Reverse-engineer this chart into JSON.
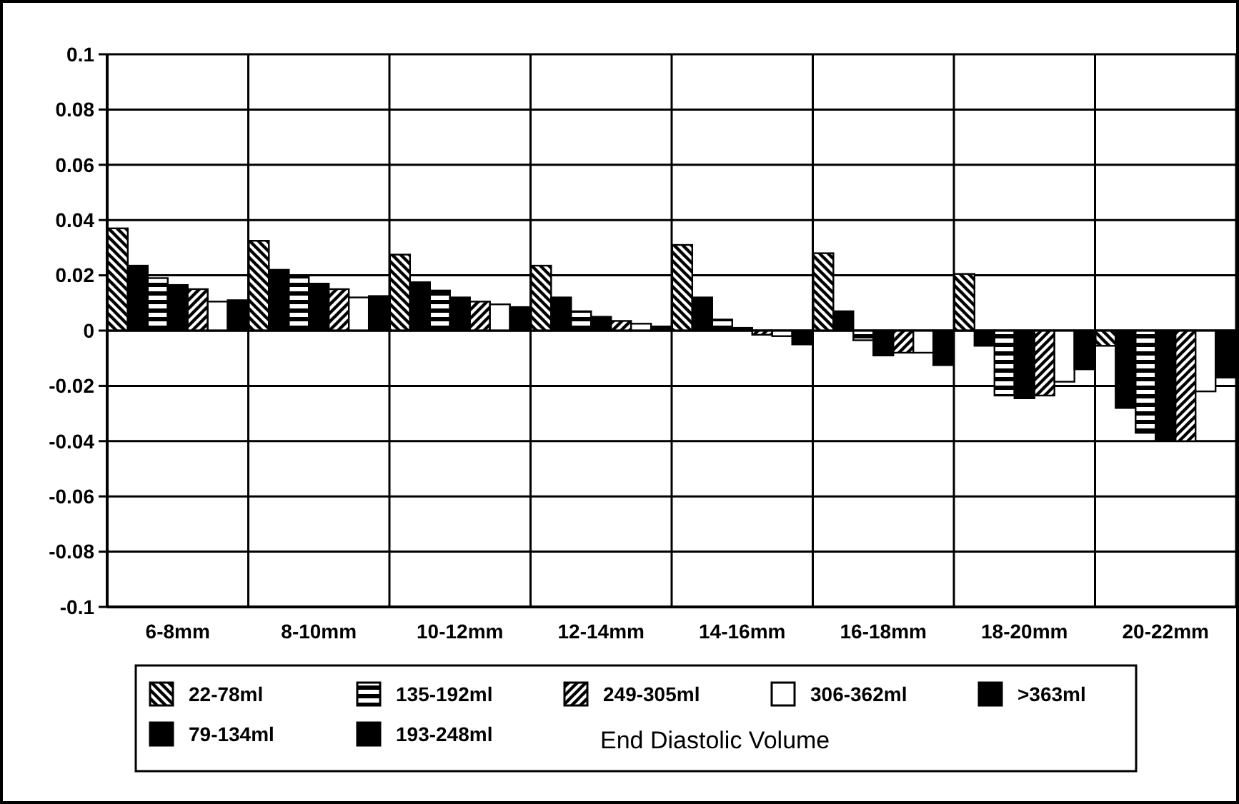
{
  "chart_data": {
    "type": "bar",
    "categories": [
      "6-8mm",
      "8-10mm",
      "10-12mm",
      "12-14mm",
      "14-16mm",
      "16-18mm",
      "18-20mm",
      "20-22mm"
    ],
    "series": [
      {
        "name": "22-78ml",
        "color": "#000000",
        "values": [
          0.037,
          0.0325,
          0.0275,
          0.0235,
          0.031,
          0.028,
          0.0205,
          -0.0055
        ]
      },
      {
        "name": "79-134ml",
        "color": "#000000",
        "values": [
          0.0235,
          0.022,
          0.0175,
          0.012,
          0.012,
          0.007,
          -0.0055,
          -0.028
        ]
      },
      {
        "name": "135-192ml",
        "color": "#000000",
        "values": [
          0.019,
          0.0195,
          0.0145,
          0.007,
          0.004,
          -0.0035,
          -0.0235,
          -0.037
        ]
      },
      {
        "name": "193-248ml",
        "color": "#000000",
        "values": [
          0.0165,
          0.017,
          0.012,
          0.005,
          0.001,
          -0.009,
          -0.0245,
          -0.04
        ]
      },
      {
        "name": "249-305ml",
        "color": "#000000",
        "values": [
          0.015,
          0.015,
          0.0105,
          0.0035,
          -0.0015,
          -0.008,
          -0.0235,
          -0.04
        ]
      },
      {
        "name": "306-362ml",
        "color": "#ffffff",
        "values": [
          0.0105,
          0.012,
          0.0095,
          0.0025,
          -0.002,
          -0.008,
          -0.0185,
          -0.022
        ]
      },
      {
        "name": ">363ml",
        "color": "#000000",
        "values": [
          0.011,
          0.0125,
          0.0085,
          0.0015,
          -0.005,
          -0.0125,
          -0.014,
          -0.017
        ]
      }
    ],
    "ylim": [
      -0.1,
      0.1
    ],
    "yticks": [
      -0.1,
      -0.08,
      -0.06,
      -0.04,
      -0.02,
      0,
      0.02,
      0.04,
      0.06,
      0.08,
      0.1
    ],
    "grid": true,
    "legend": "bottom",
    "legend_title": "End Diastolic Volume"
  }
}
